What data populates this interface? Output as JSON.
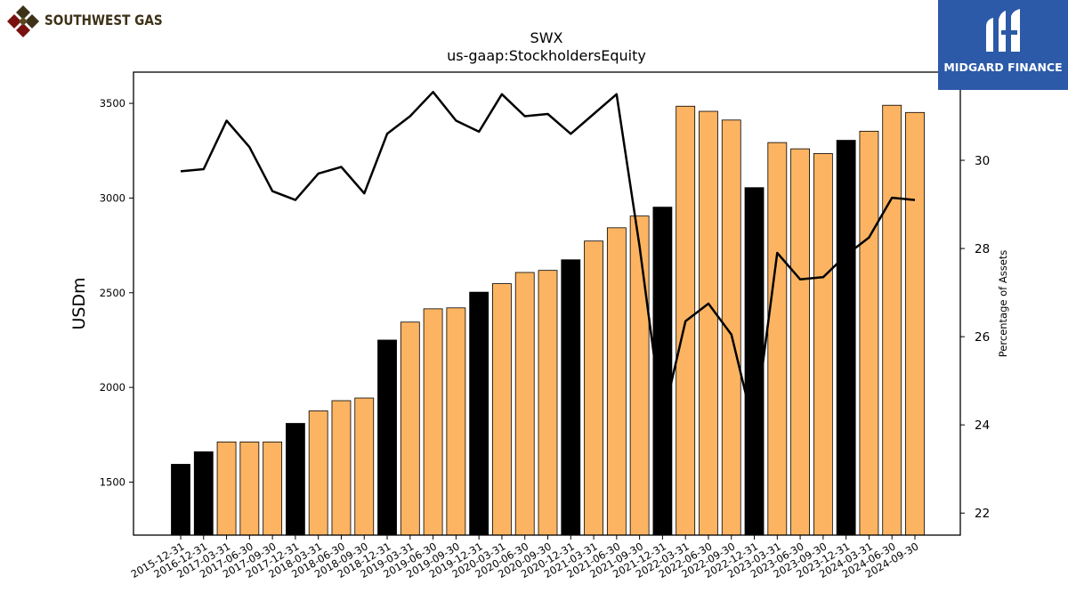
{
  "logos": {
    "left_text": "SOUTHWEST GAS",
    "right_text": "MIDGARD FINANCE"
  },
  "colors": {
    "bar_orange": "#fdb462",
    "bar_black": "#000000",
    "line": "#000000",
    "logo_blue": "#2c5aa8",
    "logo_brown": "#3d3218",
    "logo_red": "#7a1010"
  },
  "chart_data": {
    "type": "bar",
    "title": "SWX",
    "subtitle": "us-gaap:StockholdersEquity",
    "ylabel": "USDm",
    "y2label": "Percentage of Assets",
    "ylim": [
      1220,
      3665
    ],
    "y2lim": [
      21.5,
      32.0
    ],
    "yticks": [
      1500,
      2000,
      2500,
      3000,
      3500
    ],
    "y2ticks": [
      22,
      24,
      26,
      28,
      30
    ],
    "grid": false,
    "categories": [
      "2015-12-31",
      "2016-12-31",
      "2017-03-31",
      "2017-06-30",
      "2017-09-30",
      "2017-12-31",
      "2018-03-31",
      "2018-06-30",
      "2018-09-30",
      "2018-12-31",
      "2019-03-31",
      "2019-06-30",
      "2019-09-30",
      "2019-12-31",
      "2020-03-31",
      "2020-06-30",
      "2020-09-30",
      "2020-12-31",
      "2021-03-31",
      "2021-06-30",
      "2021-09-30",
      "2021-12-31",
      "2022-03-31",
      "2022-06-30",
      "2022-09-30",
      "2022-12-31",
      "2023-03-31",
      "2023-06-30",
      "2023-09-30",
      "2023-12-31",
      "2024-03-31",
      "2024-06-30",
      "2024-09-30"
    ],
    "bar_values": [
      1594,
      1660,
      1712,
      1712,
      1712,
      1810,
      1876,
      1930,
      1944,
      2250,
      2345,
      2415,
      2420,
      2503,
      2548,
      2607,
      2618,
      2674,
      2773,
      2843,
      2905,
      2952,
      3485,
      3458,
      3412,
      3055,
      3293,
      3260,
      3235,
      3305,
      3353,
      3490,
      3452
    ],
    "bar_is_year_end": [
      true,
      true,
      false,
      false,
      false,
      true,
      false,
      false,
      false,
      true,
      false,
      false,
      false,
      true,
      false,
      false,
      false,
      true,
      false,
      false,
      false,
      true,
      false,
      false,
      false,
      true,
      false,
      false,
      false,
      true,
      false,
      false,
      false
    ],
    "line_values": [
      29.75,
      29.8,
      30.9,
      30.3,
      29.3,
      29.1,
      29.7,
      29.85,
      29.25,
      30.6,
      31.0,
      31.55,
      30.9,
      30.65,
      31.5,
      31.0,
      31.05,
      30.6,
      31.05,
      31.5,
      28.05,
      24.1,
      26.35,
      26.75,
      26.05,
      23.9,
      27.9,
      27.3,
      27.35,
      27.85,
      28.25,
      29.15,
      29.1
    ]
  }
}
